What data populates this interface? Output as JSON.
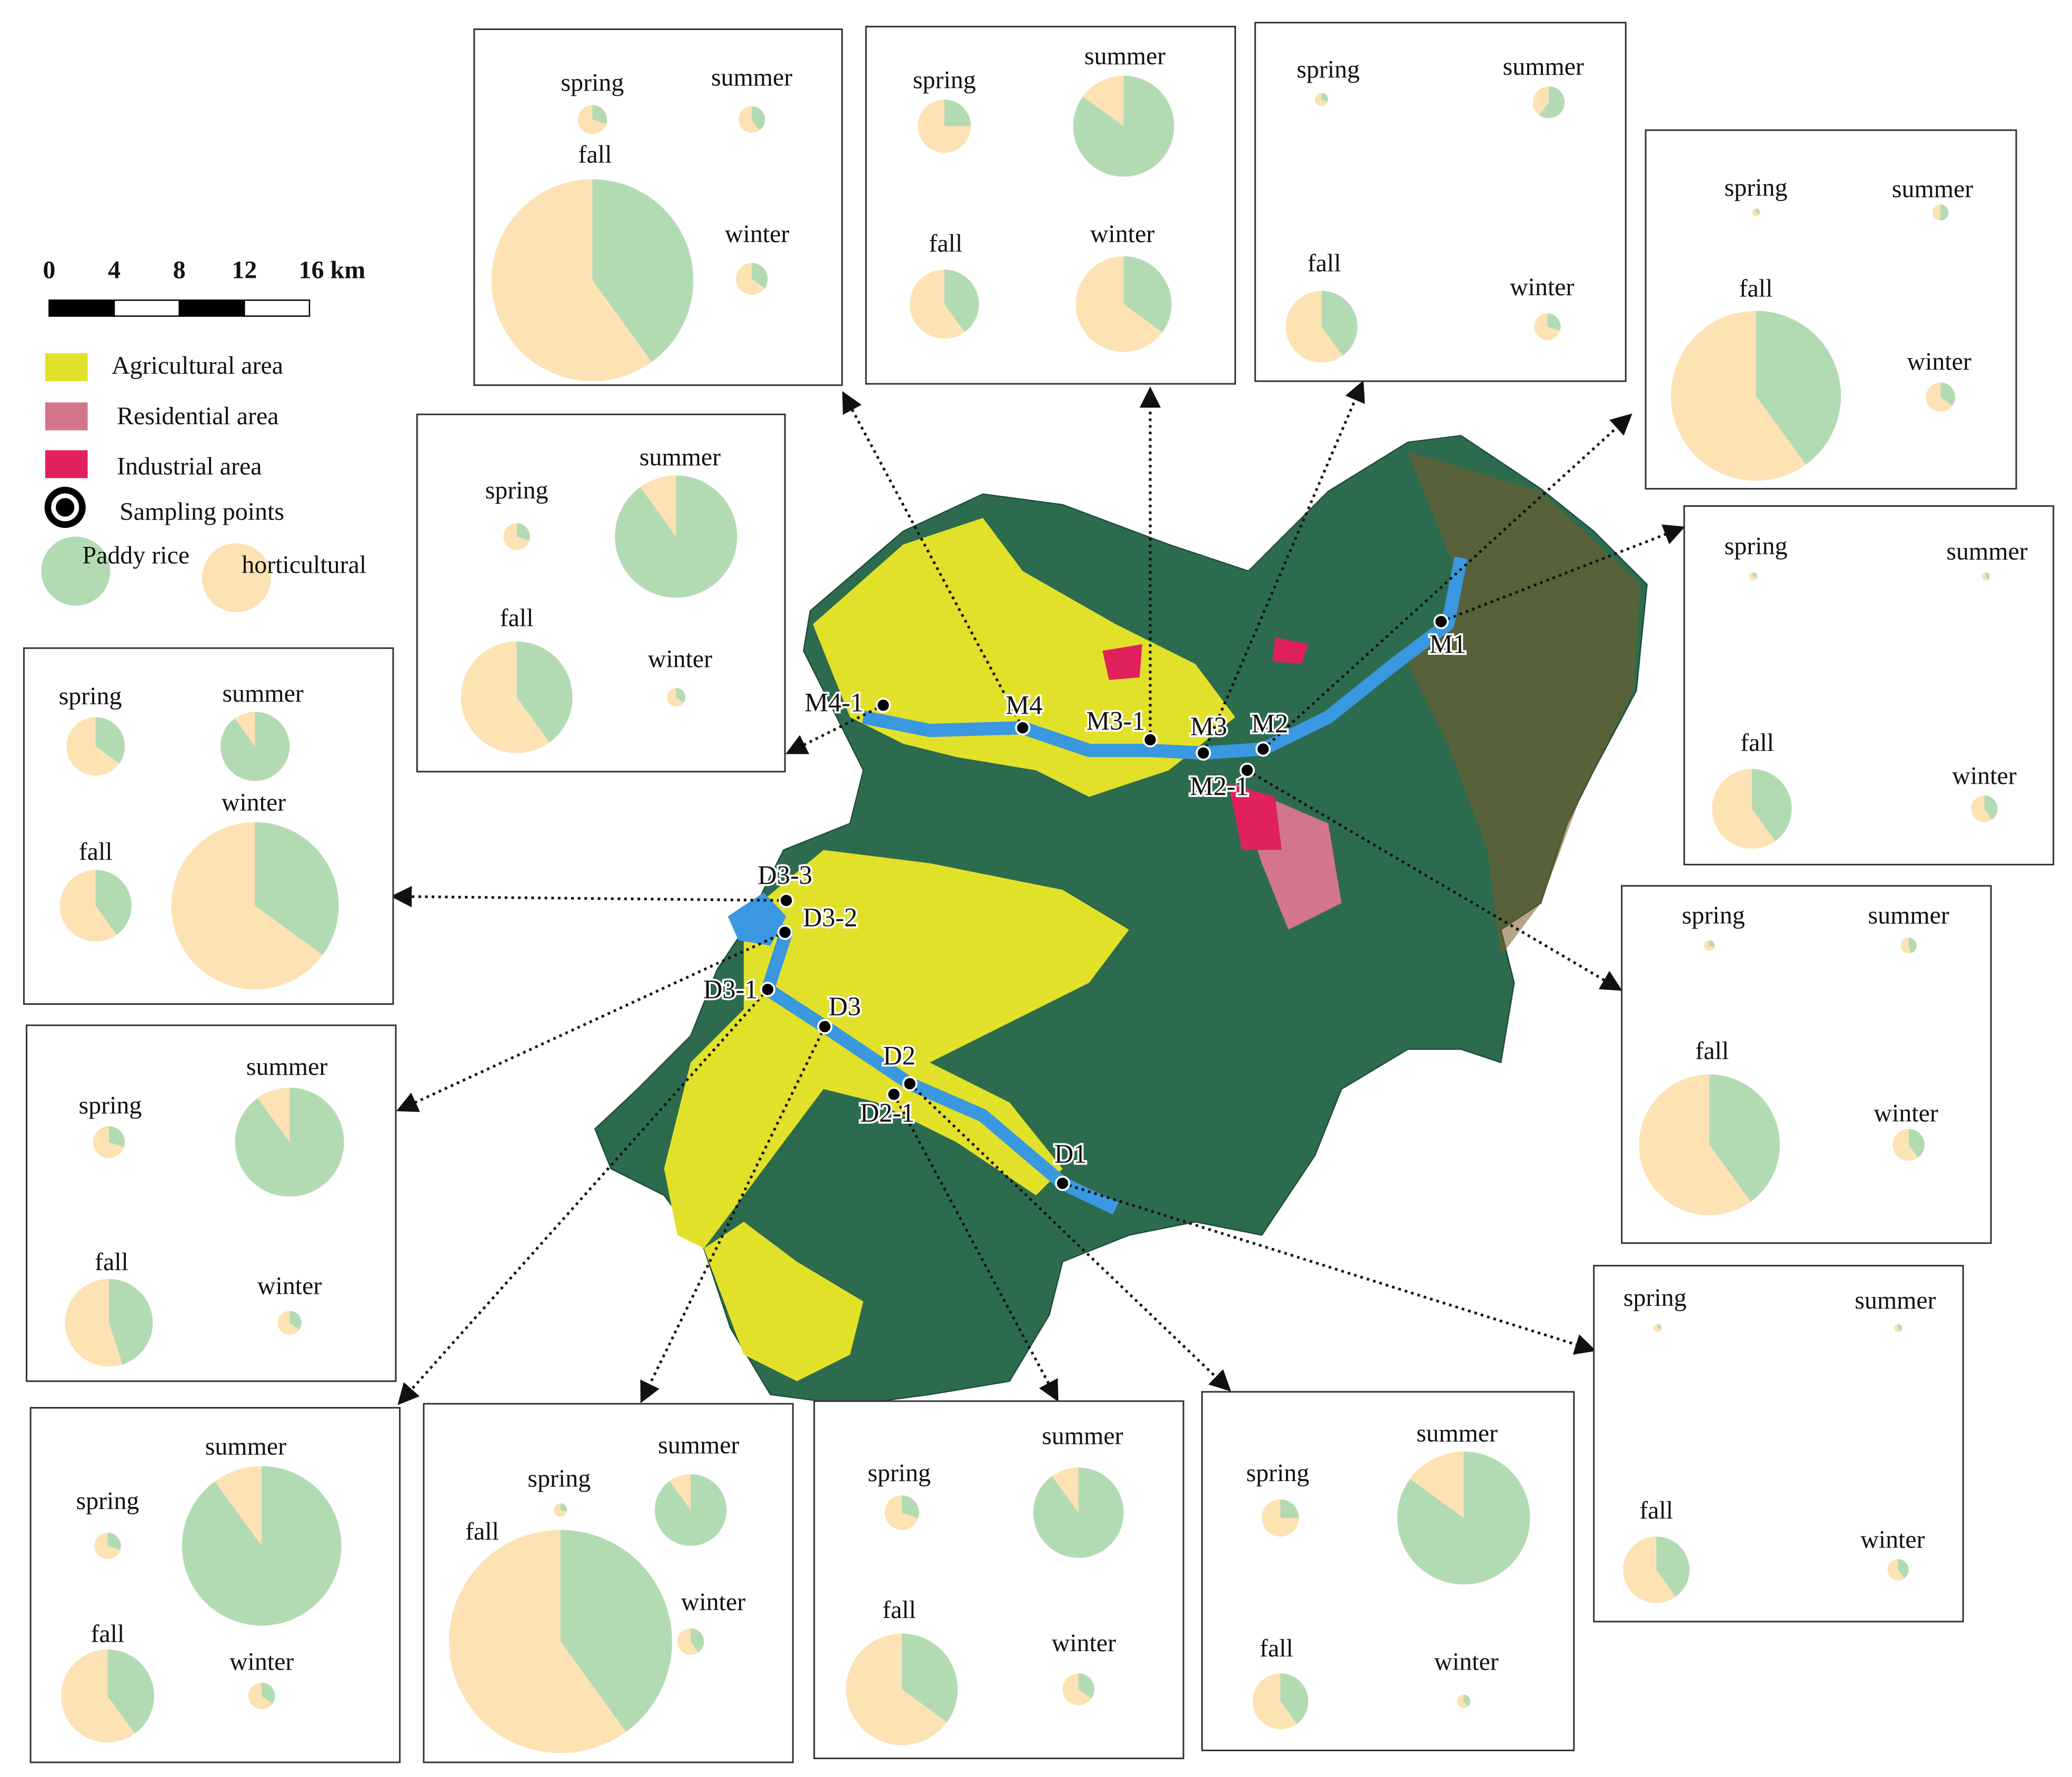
{
  "scale_bar": {
    "ticks": [
      "0",
      "4",
      "8",
      "12",
      "16 km"
    ]
  },
  "legend": {
    "items": [
      "Agricultural area",
      "Residential area",
      "Industrial area",
      "Sampling points"
    ],
    "pie_legend": [
      "Paddy rice",
      "horticultural"
    ]
  },
  "sampling_points": [
    "M1",
    "M2",
    "M2-1",
    "M3",
    "M3-1",
    "M4",
    "M4-1",
    "D3-3",
    "D3-2",
    "D3-1",
    "D3",
    "D2",
    "D2-1",
    "D1"
  ],
  "panels": [
    {
      "pies": [
        {
          "label": "spring",
          "paddy": 30,
          "size": 11
        },
        {
          "label": "summer",
          "paddy": 40,
          "size": 10
        },
        {
          "label": "fall",
          "paddy": 40,
          "size": 76
        },
        {
          "label": "winter",
          "paddy": 35,
          "size": 12
        }
      ]
    },
    {
      "pies": [
        {
          "label": "spring",
          "paddy": 25,
          "size": 20
        },
        {
          "label": "summer",
          "paddy": 85,
          "size": 38
        },
        {
          "label": "fall",
          "paddy": 40,
          "size": 26
        },
        {
          "label": "winter",
          "paddy": 35,
          "size": 36
        }
      ]
    },
    {
      "pies": [
        {
          "label": "spring",
          "paddy": 30,
          "size": 5
        },
        {
          "label": "summer",
          "paddy": 60,
          "size": 12
        },
        {
          "label": "fall",
          "paddy": 40,
          "size": 27
        },
        {
          "label": "winter",
          "paddy": 30,
          "size": 10
        }
      ]
    },
    {
      "pies": [
        {
          "label": "spring",
          "paddy": 30,
          "size": 3
        },
        {
          "label": "summer",
          "paddy": 50,
          "size": 6
        },
        {
          "label": "fall",
          "paddy": 40,
          "size": 64
        },
        {
          "label": "winter",
          "paddy": 35,
          "size": 11
        }
      ]
    },
    {
      "pies": [
        {
          "label": "spring",
          "paddy": 30,
          "size": 3
        },
        {
          "label": "summer",
          "paddy": 40,
          "size": 3
        },
        {
          "label": "fall",
          "paddy": 40,
          "size": 30
        },
        {
          "label": "winter",
          "paddy": 40,
          "size": 10
        }
      ]
    },
    {
      "pies": [
        {
          "label": "spring",
          "paddy": 30,
          "size": 4
        },
        {
          "label": "summer",
          "paddy": 45,
          "size": 6
        },
        {
          "label": "fall",
          "paddy": 40,
          "size": 53
        },
        {
          "label": "winter",
          "paddy": 40,
          "size": 12
        }
      ]
    },
    {
      "pies": [
        {
          "label": "spring",
          "paddy": 30,
          "size": 3
        },
        {
          "label": "summer",
          "paddy": 40,
          "size": 3
        },
        {
          "label": "fall",
          "paddy": 40,
          "size": 25
        },
        {
          "label": "winter",
          "paddy": 40,
          "size": 8
        }
      ]
    },
    {
      "pies": [
        {
          "label": "spring",
          "paddy": 25,
          "size": 14
        },
        {
          "label": "summer",
          "paddy": 85,
          "size": 50
        },
        {
          "label": "fall",
          "paddy": 40,
          "size": 21
        },
        {
          "label": "winter",
          "paddy": 40,
          "size": 5
        }
      ]
    },
    {
      "pies": [
        {
          "label": "spring",
          "paddy": 30,
          "size": 13
        },
        {
          "label": "summer",
          "paddy": 90,
          "size": 34
        },
        {
          "label": "fall",
          "paddy": 35,
          "size": 42
        },
        {
          "label": "winter",
          "paddy": 35,
          "size": 12
        }
      ]
    },
    {
      "pies": [
        {
          "label": "spring",
          "paddy": 30,
          "size": 5
        },
        {
          "label": "summer",
          "paddy": 90,
          "size": 27
        },
        {
          "label": "fall",
          "paddy": 40,
          "size": 84
        },
        {
          "label": "winter",
          "paddy": 40,
          "size": 10
        }
      ]
    },
    {
      "pies": [
        {
          "label": "spring",
          "paddy": 30,
          "size": 10
        },
        {
          "label": "summer",
          "paddy": 90,
          "size": 60
        },
        {
          "label": "fall",
          "paddy": 40,
          "size": 35
        },
        {
          "label": "winter",
          "paddy": 35,
          "size": 10
        }
      ]
    },
    {
      "pies": [
        {
          "label": "spring",
          "paddy": 30,
          "size": 12
        },
        {
          "label": "summer",
          "paddy": 90,
          "size": 41
        },
        {
          "label": "fall",
          "paddy": 45,
          "size": 33
        },
        {
          "label": "winter",
          "paddy": 35,
          "size": 9
        }
      ]
    },
    {
      "pies": [
        {
          "label": "spring",
          "paddy": 35,
          "size": 22
        },
        {
          "label": "summer",
          "paddy": 90,
          "size": 26
        },
        {
          "label": "fall",
          "paddy": 40,
          "size": 27
        },
        {
          "label": "winter",
          "paddy": 35,
          "size": 63
        }
      ]
    },
    {
      "pies": [
        {
          "label": "spring",
          "paddy": 30,
          "size": 10
        },
        {
          "label": "summer",
          "paddy": 90,
          "size": 46
        },
        {
          "label": "fall",
          "paddy": 40,
          "size": 42
        },
        {
          "label": "winter",
          "paddy": 35,
          "size": 7
        }
      ]
    }
  ]
}
